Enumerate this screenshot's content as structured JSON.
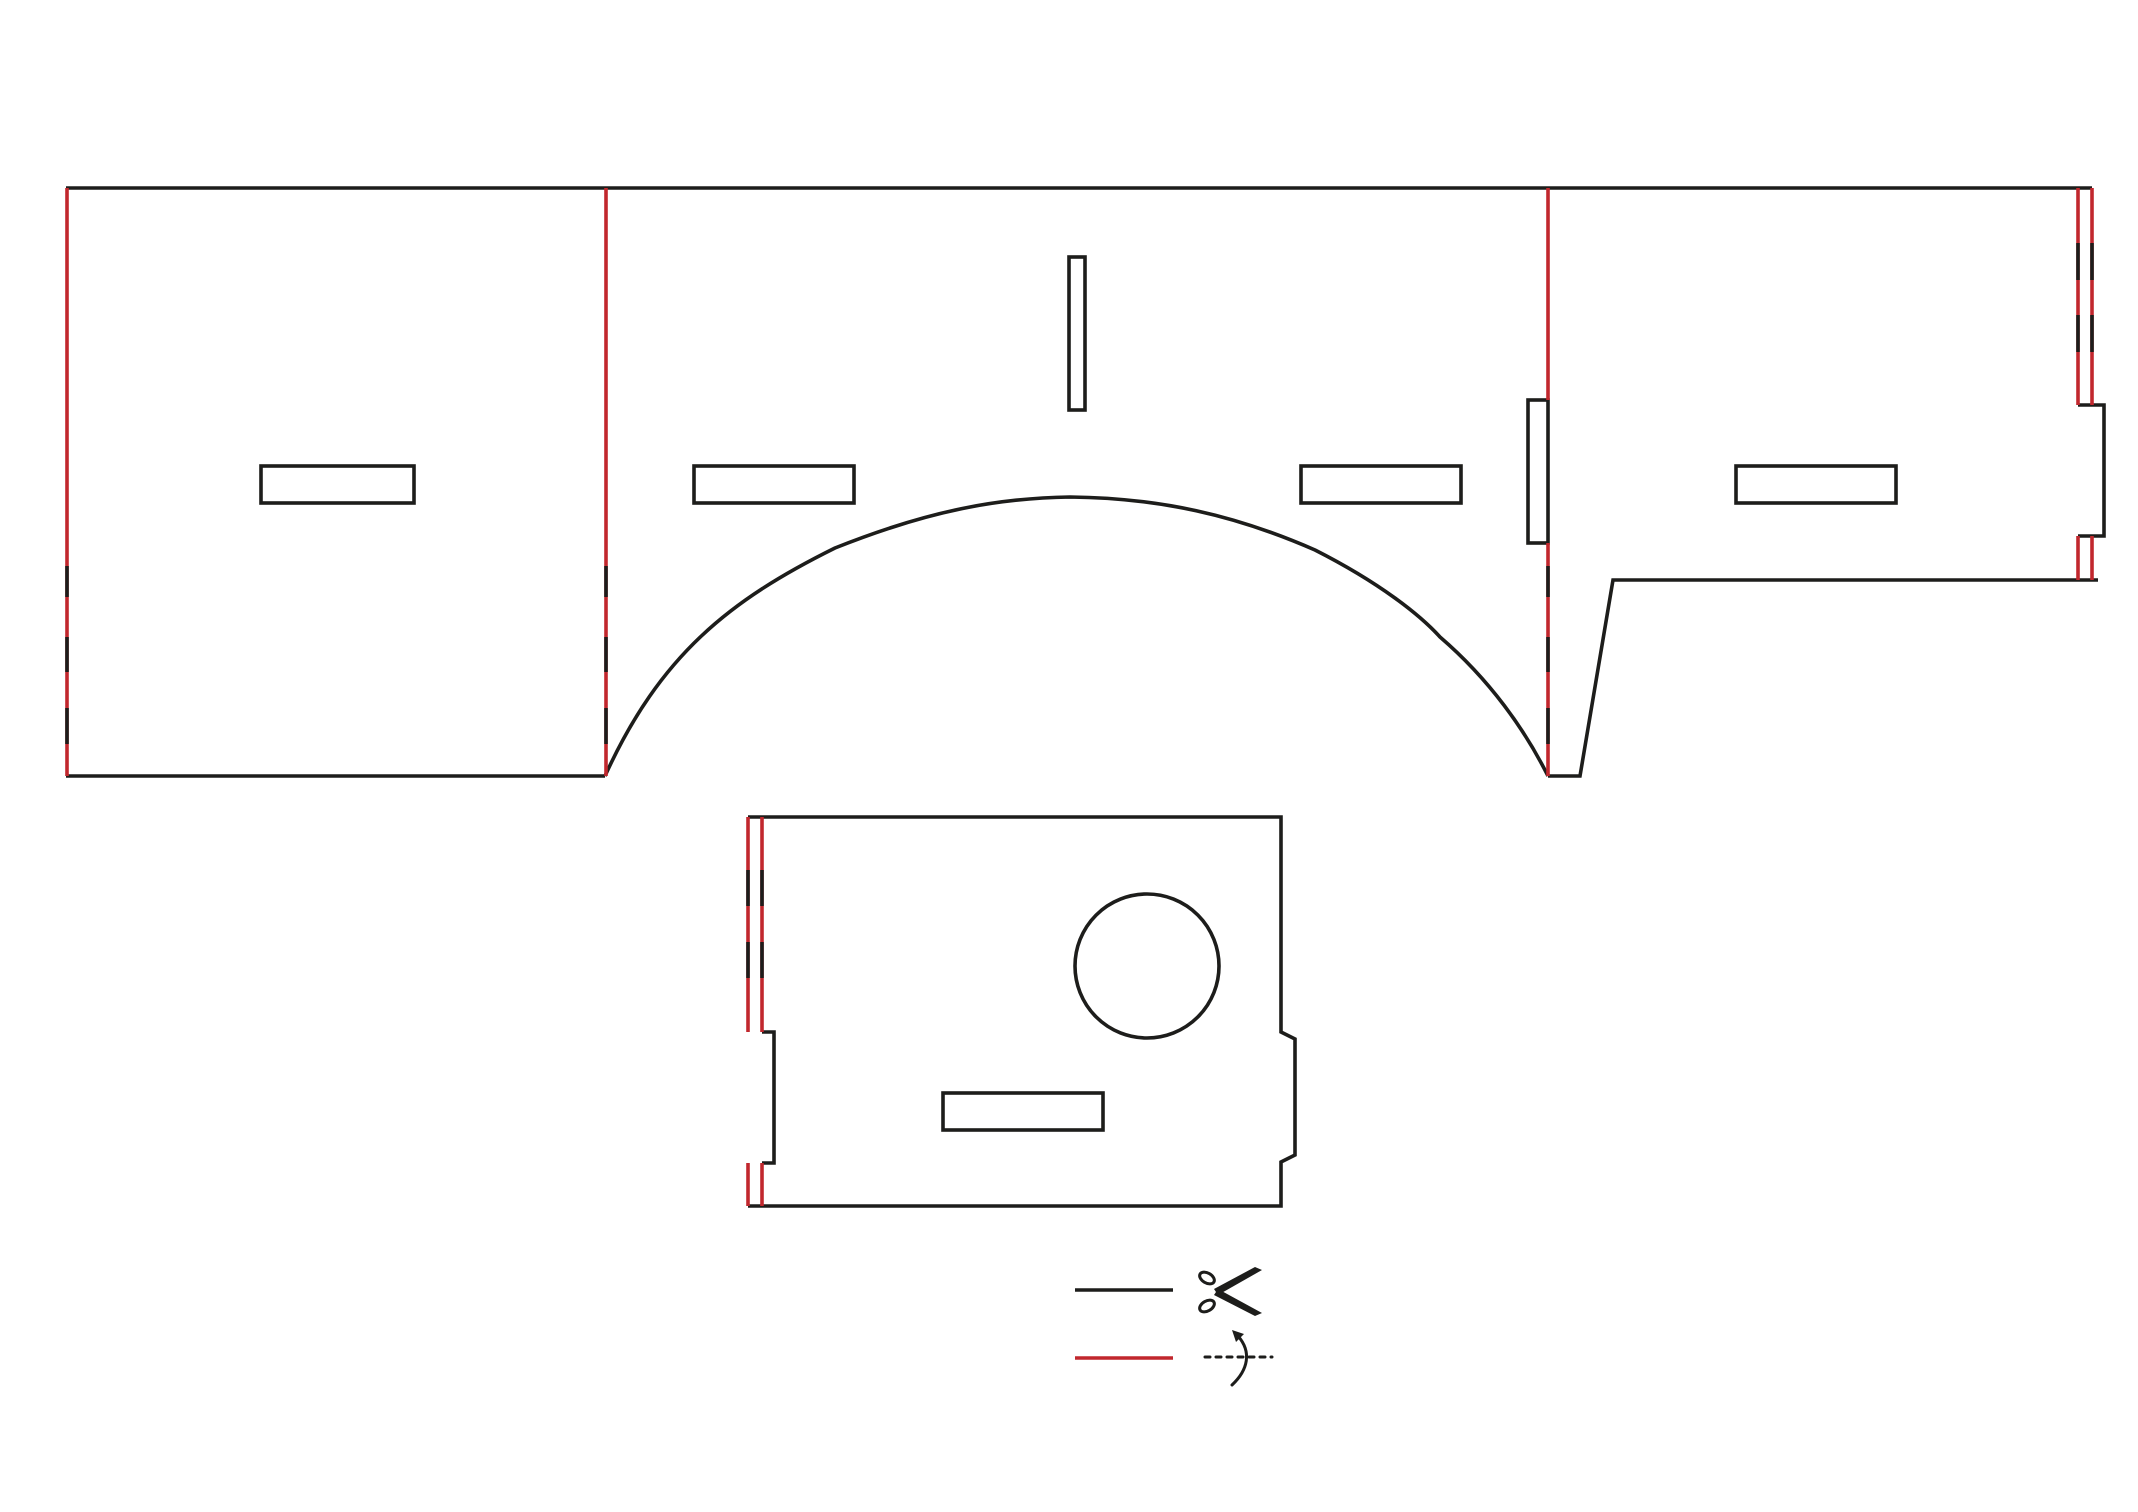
{
  "colors": {
    "cut_line": "#1d1d1b",
    "fold_line": "#c1272d",
    "background": "#ffffff"
  },
  "legend": {
    "items": [
      {
        "line": "cut-line",
        "symbol": "scissors-icon"
      },
      {
        "line": "fold-line",
        "symbol": "fold-arrow-icon"
      }
    ]
  }
}
